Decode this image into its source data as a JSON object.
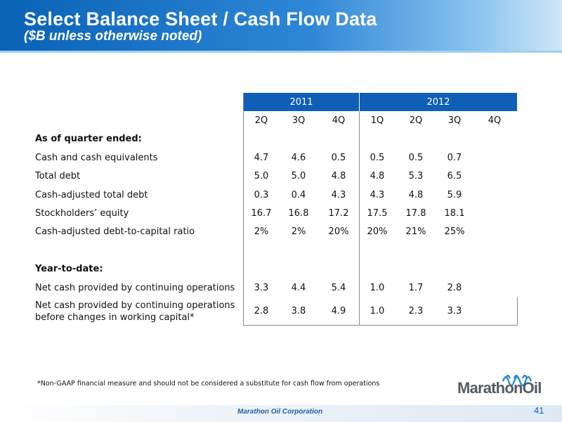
{
  "header": {
    "title": "Select Balance Sheet / Cash Flow Data",
    "subtitle": "($B unless otherwise noted)"
  },
  "table": {
    "years": [
      "2011",
      "2012"
    ],
    "quarters": [
      "2Q",
      "3Q",
      "4Q",
      "1Q",
      "2Q",
      "3Q",
      "4Q"
    ],
    "section1_label": "As of quarter ended:",
    "section1_rows": [
      {
        "label": "Cash and cash equivalents",
        "values": [
          "4.7",
          "4.6",
          "0.5",
          "0.5",
          "0.5",
          "0.7",
          ""
        ]
      },
      {
        "label": "Total debt",
        "values": [
          "5.0",
          "5.0",
          "4.8",
          "4.8",
          "5.3",
          "6.5",
          ""
        ]
      },
      {
        "label": "Cash-adjusted total debt",
        "values": [
          "0.3",
          "0.4",
          "4.3",
          "4.3",
          "4.8",
          "5.9",
          ""
        ]
      },
      {
        "label": "Stockholders’ equity",
        "values": [
          "16.7",
          "16.8",
          "17.2",
          "17.5",
          "17.8",
          "18.1",
          ""
        ]
      },
      {
        "label": "Cash-adjusted debt-to-capital ratio",
        "values": [
          "2%",
          "2%",
          "20%",
          "20%",
          "21%",
          "25%",
          ""
        ]
      }
    ],
    "section2_label": "Year-to-date:",
    "section2_rows": [
      {
        "label": "Net cash provided by continuing operations",
        "values": [
          "3.3",
          "4.4",
          "5.4",
          "1.0",
          "1.7",
          "2.8",
          ""
        ]
      },
      {
        "label_line1": "Net cash provided by continuing operations",
        "label_line2": "before changes in working capital*",
        "values": [
          "2.8",
          "3.8",
          "4.9",
          "1.0",
          "2.3",
          "3.3",
          ""
        ]
      }
    ]
  },
  "footnote": "*Non-GAAP financial measure and should not be considered a substitute for cash flow from operations",
  "logo": {
    "text": "MarathonOil",
    "colors": {
      "blue": "#2a8bd0",
      "gray": "#555b63"
    }
  },
  "footer": {
    "company": "Marathon Oil Corporation",
    "page": "41"
  },
  "colors": {
    "header_blue": "#0a62b6",
    "year_band": "#0f5fb8"
  }
}
